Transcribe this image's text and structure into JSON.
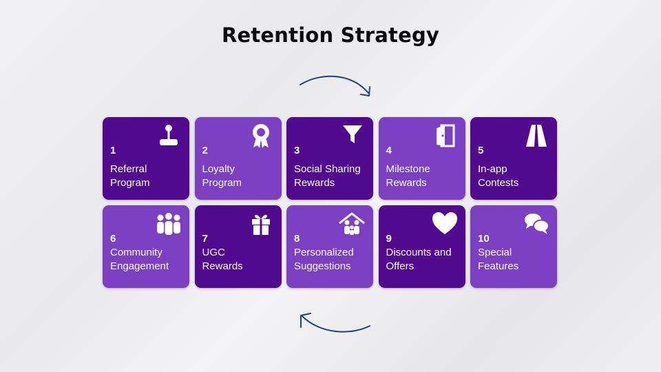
{
  "title": "Retention Strategy",
  "colors": {
    "dark_tile": "#510a8f",
    "light_tile": "#7b3fc4",
    "arrow": "#1e3f8a"
  },
  "tiles": [
    {
      "number": "1",
      "label": "Referral\nProgram",
      "icon": "joystick-icon"
    },
    {
      "number": "2",
      "label": "Loyalty\nProgram",
      "icon": "award-badge-icon"
    },
    {
      "number": "3",
      "label": "Social Sharing\nRewards",
      "icon": "funnel-icon"
    },
    {
      "number": "4",
      "label": "Milestone\nRewards",
      "icon": "door-exit-icon"
    },
    {
      "number": "5",
      "label": "In-app\nContests",
      "icon": "road-icon"
    },
    {
      "number": "6",
      "label": "Community\nEngagement",
      "icon": "people-group-icon"
    },
    {
      "number": "7",
      "label": "UGC\nRewards",
      "icon": "gift-icon"
    },
    {
      "number": "8",
      "label": "Personalized\nSuggestions",
      "icon": "family-home-icon"
    },
    {
      "number": "9",
      "label": "Discounts and\nOffers",
      "icon": "heart-icon"
    },
    {
      "number": "10",
      "label": "Special\nFeatures",
      "icon": "chat-bubbles-icon"
    }
  ]
}
